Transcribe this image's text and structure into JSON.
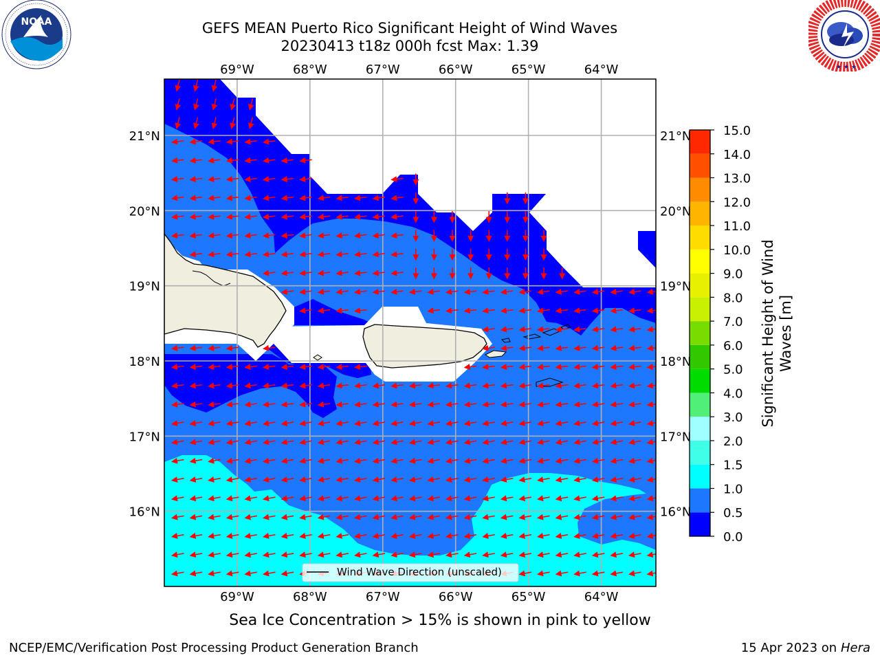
{
  "title": {
    "line1": "GEFS MEAN Puerto Rico Significant Height of Wind Waves",
    "line2": "20230413 t18z 000h fcst   Max: 1.39"
  },
  "logos": {
    "left": {
      "name": "noaa-logo",
      "text": "NOAA",
      "ring_text": "NATIONAL OCEANIC AND ATMOSPHERIC ADMINISTRATION · U.S. DEPARTMENT OF COMMERCE"
    },
    "right": {
      "name": "nws-logo",
      "ring_text": "NATIONAL WEATHER SERVICE"
    }
  },
  "map": {
    "lon_range": [
      -70.0,
      -63.25
    ],
    "lat_range": [
      15.0,
      21.75
    ],
    "lon_ticks": [
      -69,
      -68,
      -67,
      -66,
      -65,
      -64
    ],
    "lat_ticks": [
      16,
      17,
      18,
      19,
      20,
      21
    ],
    "lon_labels": [
      "69°W",
      "68°W",
      "67°W",
      "66°W",
      "65°W",
      "64°W"
    ],
    "lat_labels": [
      "16°N",
      "17°N",
      "18°N",
      "19°N",
      "20°N",
      "21°N"
    ],
    "grid": true,
    "vector_field": "wind-wave-direction",
    "vector_color": "#ff0000",
    "land_color": "#efeedf",
    "legend_label": "Wind Wave Direction (unscaled)"
  },
  "colorbar": {
    "label": "Significant Height of Wind Waves [m]",
    "label_line1": "Significant Height of Wind",
    "label_line2": "Waves [m]",
    "ticks": [
      "0.0",
      "0.5",
      "1.0",
      "1.5",
      "2.0",
      "3.0",
      "4.0",
      "5.0",
      "6.0",
      "7.0",
      "8.0",
      "9.0",
      "10.0",
      "11.0",
      "12.0",
      "13.0",
      "14.0",
      "15.0"
    ],
    "colors": [
      "#0000ff",
      "#1e78ff",
      "#00ffff",
      "#40ffe8",
      "#a0ffff",
      "#50f078",
      "#00dc00",
      "#32c800",
      "#78dc00",
      "#c8f000",
      "#e6f000",
      "#ffff00",
      "#ffdc00",
      "#ffb400",
      "#ff8c00",
      "#ff5000",
      "#ff2800"
    ]
  },
  "caption": "Sea Ice Concentration > 15% is shown in pink to yellow",
  "footer": {
    "left": "NCEP/EMC/Verification Post Processing Product Generation Branch",
    "date": "15 Apr 2023 on ",
    "machine": "Hera"
  }
}
